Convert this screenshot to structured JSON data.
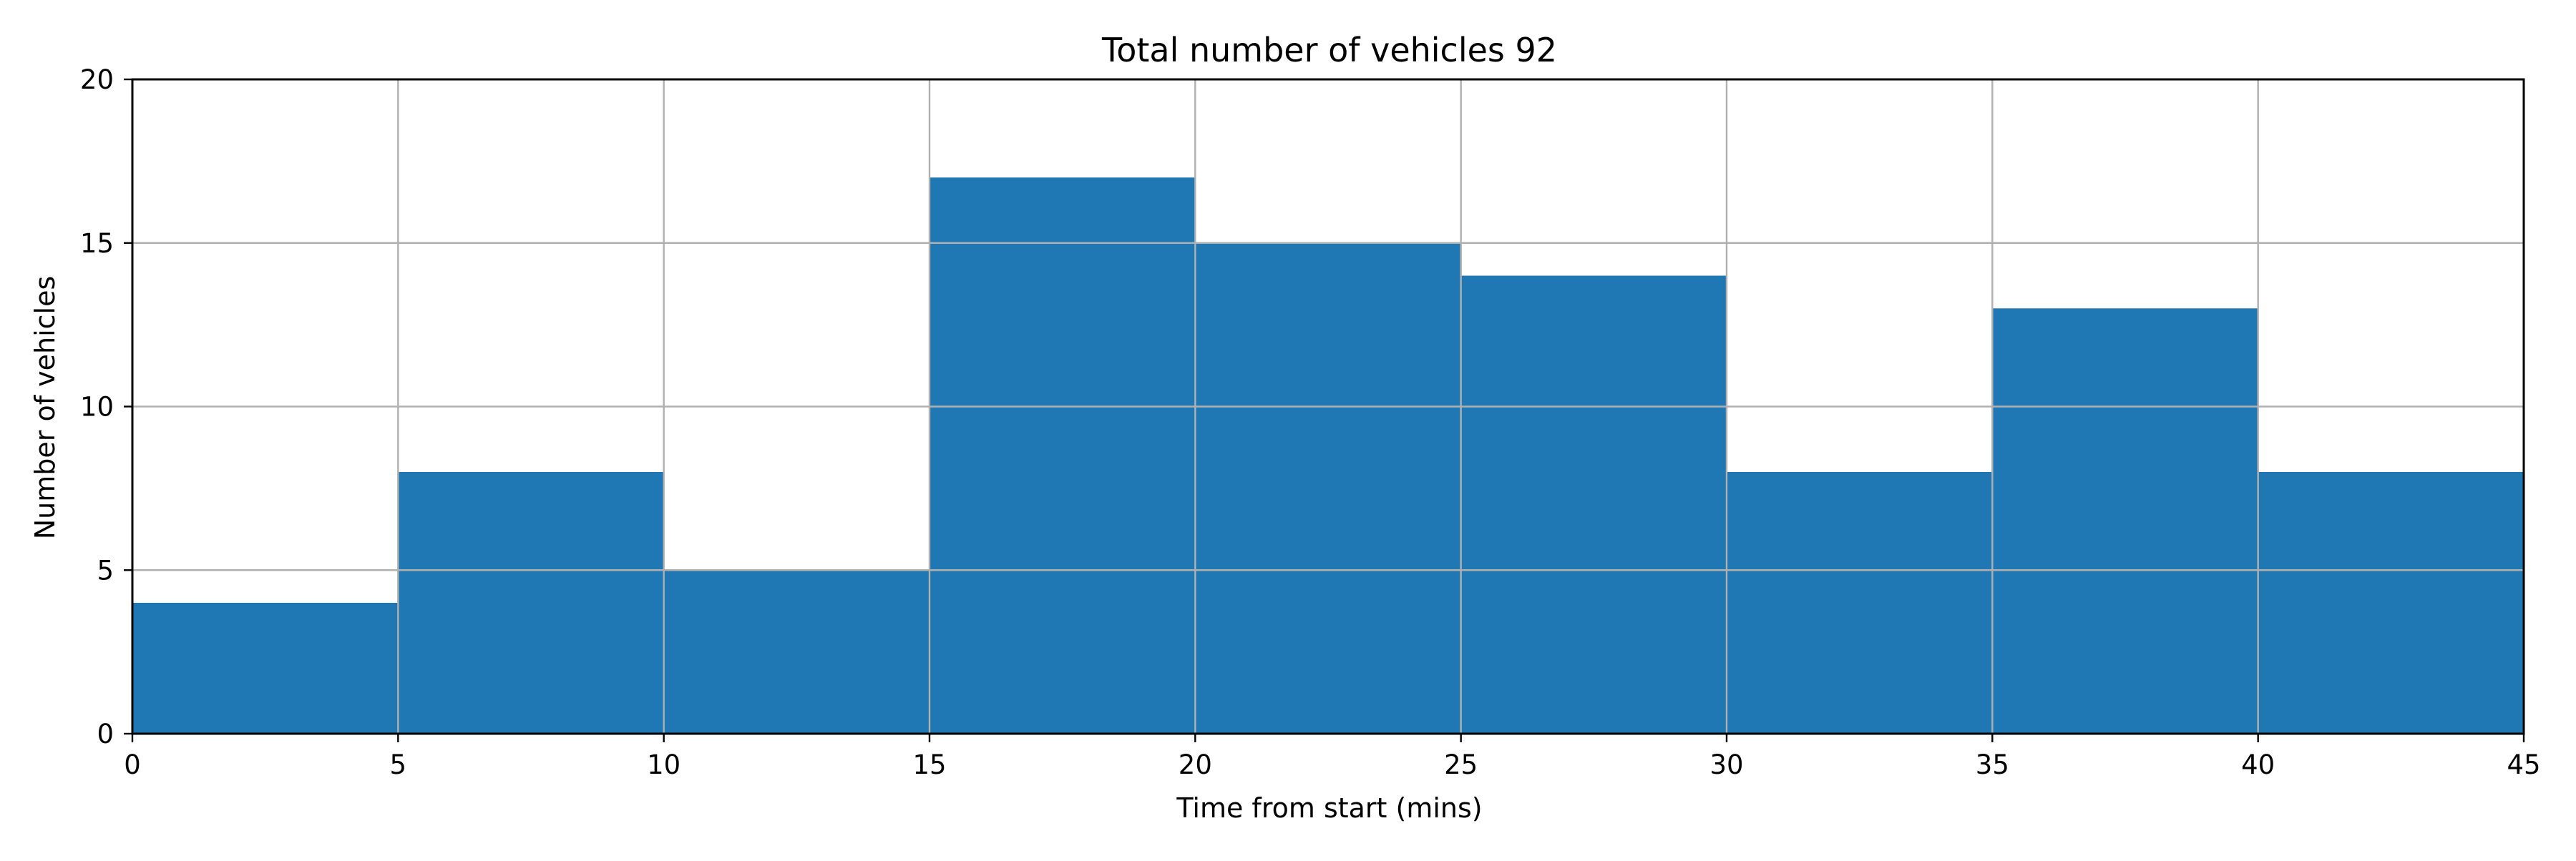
{
  "chart_data": {
    "type": "bar",
    "title": "Total number of vehicles  92",
    "xlabel": "Time from start (mins)",
    "ylabel": "Number of vehicles",
    "bin_edges": [
      0,
      5,
      10,
      15,
      20,
      25,
      30,
      35,
      40,
      45
    ],
    "values": [
      4,
      8,
      5,
      17,
      15,
      14,
      8,
      13,
      8
    ],
    "xlim": [
      0,
      45
    ],
    "ylim": [
      0,
      20
    ],
    "xticks": [
      0,
      5,
      10,
      15,
      20,
      25,
      30,
      35,
      40,
      45
    ],
    "yticks": [
      0,
      5,
      10,
      15,
      20
    ],
    "grid": true,
    "bar_color": "#1f77b4",
    "grid_color": "#b0b0b0"
  }
}
